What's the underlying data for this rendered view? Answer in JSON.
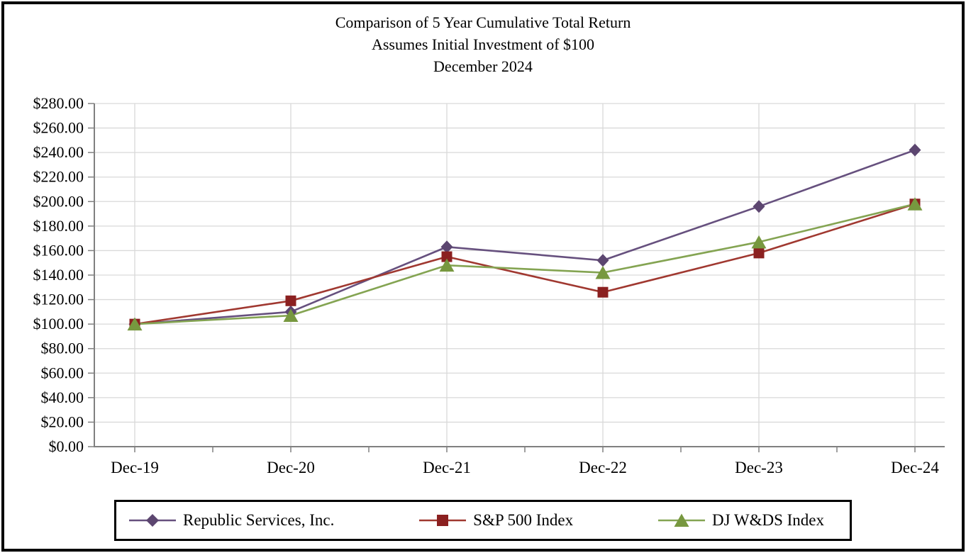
{
  "chart_data": {
    "type": "line",
    "title_lines": [
      "Comparison of 5 Year Cumulative Total Return",
      "Assumes Initial Investment of $100",
      "December 2024"
    ],
    "categories": [
      "Dec-19",
      "Dec-20",
      "Dec-21",
      "Dec-22",
      "Dec-23",
      "Dec-24"
    ],
    "series": [
      {
        "name": "Republic Services, Inc.",
        "marker": "diamond",
        "line_color": "#66507E",
        "marker_color": "#5C4670",
        "values": [
          100.0,
          110.0,
          163.0,
          152.0,
          196.0,
          242.0
        ]
      },
      {
        "name": "S&P 500 Index",
        "marker": "square",
        "line_color": "#A03830",
        "marker_color": "#8B2020",
        "values": [
          100.0,
          119.0,
          155.0,
          126.0,
          158.0,
          198.0
        ]
      },
      {
        "name": "DJ W&DS Index",
        "marker": "triangle",
        "line_color": "#84A452",
        "marker_color": "#77983F",
        "values": [
          100.0,
          107.0,
          148.0,
          142.0,
          167.0,
          198.0
        ]
      }
    ],
    "y_axis": {
      "min": 0,
      "max": 280,
      "step": 20,
      "tick_labels": [
        "$0.00",
        "$20.00",
        "$40.00",
        "$60.00",
        "$80.00",
        "$100.00",
        "$120.00",
        "$140.00",
        "$160.00",
        "$180.00",
        "$200.00",
        "$220.00",
        "$240.00",
        "$260.00",
        "$280.00"
      ]
    },
    "grid": true,
    "legend_position": "bottom",
    "colors": {
      "gridline": "#D9D9D9",
      "axis": "#808080",
      "text": "#000000",
      "frame_border": "#000000"
    }
  }
}
